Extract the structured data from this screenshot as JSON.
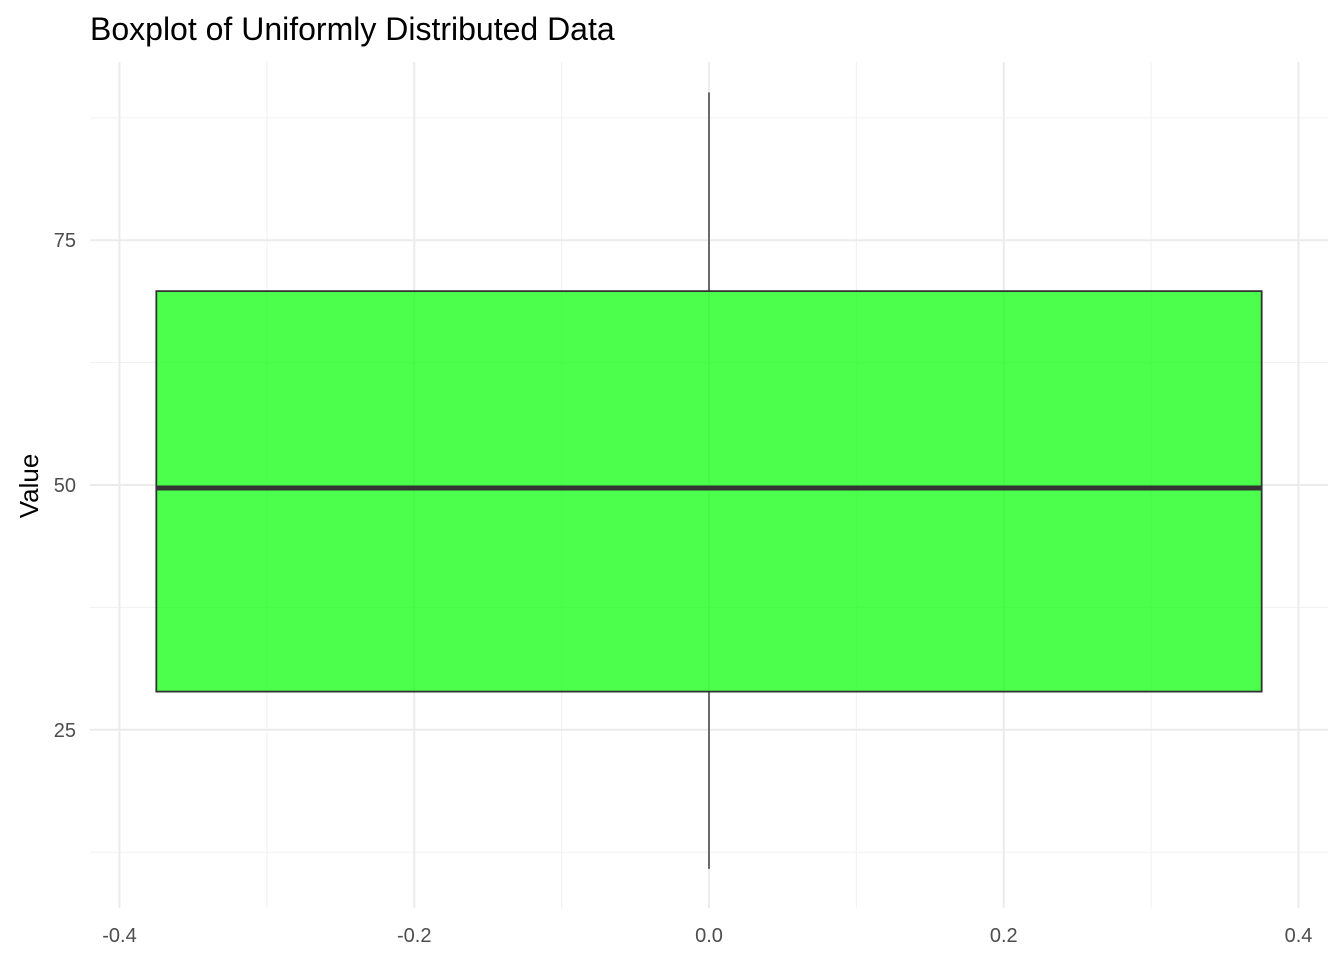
{
  "chart_data": {
    "type": "boxplot",
    "title": "Boxplot of Uniformly Distributed Data",
    "xlabel": "",
    "ylabel": "Value",
    "xlim": [
      -0.42,
      0.42
    ],
    "ylim": [
      6.8,
      93.2
    ],
    "x_ticks": [
      -0.4,
      -0.2,
      0.0,
      0.2,
      0.4
    ],
    "x_tick_labels": [
      "-0.4",
      "-0.2",
      "0.0",
      "0.2",
      "0.4"
    ],
    "y_ticks": [
      25,
      50,
      75
    ],
    "y_tick_labels": [
      "25",
      "50",
      "75"
    ],
    "x_minor_ticks": [
      -0.3,
      -0.1,
      0.1,
      0.3
    ],
    "y_minor_ticks": [
      12.5,
      37.5,
      62.5,
      87.5
    ],
    "grid": true,
    "box": {
      "x_center": 0.0,
      "x_left": -0.375,
      "x_right": 0.375,
      "whisker_low": 10.8,
      "q1": 28.9,
      "median": 49.7,
      "q3": 69.8,
      "whisker_high": 90.1
    },
    "colors": {
      "box_fill": "#00ff00",
      "box_fill_opacity": 0.7,
      "box_stroke": "#333333",
      "whisker": "#333333",
      "grid_major": "#ebebeb",
      "grid_minor": "#f2f2f2"
    }
  }
}
